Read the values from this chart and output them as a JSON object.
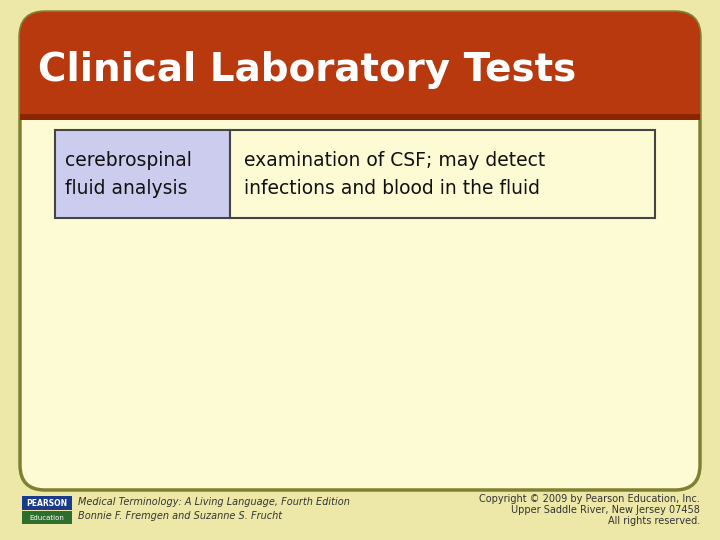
{
  "title": "Clinical Laboratory Tests",
  "title_color": "#FFFFFF",
  "title_bg_color": "#B8390E",
  "title_stripe_color": "#8B2500",
  "bg_color": "#FDFBD4",
  "outer_bg_color": "#EDE8A8",
  "table_col1_text": "cerebrospinal\nfluid analysis",
  "table_col2_text": "examination of CSF; may detect\ninfections and blood in the fluid",
  "table_col1_bg": "#CCCCEE",
  "table_col2_bg": "#FDFBD4",
  "table_border_color": "#444444",
  "footer_left_line1": "Medical Terminology: A Living Language, Fourth Edition",
  "footer_left_line2": "Bonnie F. Fremgen and Suzanne S. Frucht",
  "footer_right_line1": "Copyright © 2009 by Pearson Education, Inc.",
  "footer_right_line2": "Upper Saddle River, New Jersey 07458",
  "footer_right_line3": "All rights reserved.",
  "footer_color": "#333333",
  "pearson_box_color1": "#1A3A8A",
  "pearson_box_color2": "#2D6E2D",
  "scroll_border_color": "#808030",
  "text_color": "#111111",
  "figw": 7.2,
  "figh": 5.4,
  "dpi": 100
}
